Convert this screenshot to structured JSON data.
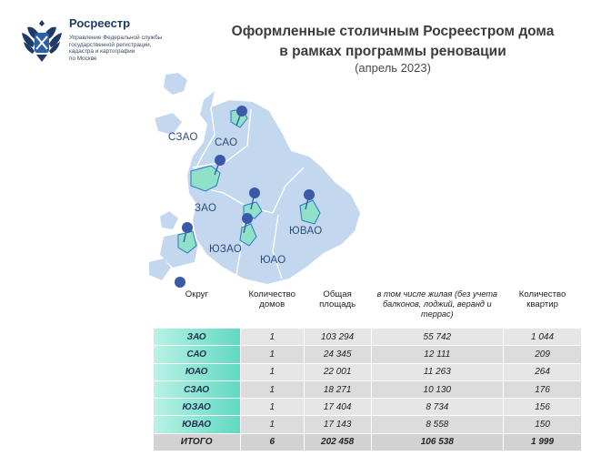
{
  "brand": {
    "name": "Росреестр",
    "subtitle_lines": [
      "Управление Федеральной службы",
      "государственной регистрации,",
      "кадастра и картографии",
      "по Москве"
    ]
  },
  "header": {
    "title_line1": "Оформленные столичным Росреестром дома",
    "title_line2": "в рамках программы реновации",
    "subtitle": "(апрель 2023)"
  },
  "map": {
    "labels": {
      "szao": "СЗАО",
      "sao": "САО",
      "zao": "ЗАО",
      "yuzao": "ЮЗАО",
      "yuao": "ЮАО",
      "yuvao": "ЮВАО"
    },
    "colors": {
      "base": "#c3d8ef",
      "highlight": "#2f75c4",
      "pin": "#3a5aa8",
      "green": "#8fe1c8"
    }
  },
  "table": {
    "headers": {
      "district": "Округ",
      "houses": "Количество домов",
      "area": "Общая площадь",
      "living": "в том числе жилая (без учета балконов, лоджий, веранд и террас)",
      "flats": "Количество квартир"
    },
    "rows": [
      {
        "district": "ЗАО",
        "houses": "1",
        "area": "103 294",
        "living": "55 742",
        "flats": "1 044"
      },
      {
        "district": "САО",
        "houses": "1",
        "area": "24 345",
        "living": "12 111",
        "flats": "209"
      },
      {
        "district": "ЮАО",
        "houses": "1",
        "area": "22 001",
        "living": "11 263",
        "flats": "264"
      },
      {
        "district": "СЗАО",
        "houses": "1",
        "area": "18 271",
        "living": "10 130",
        "flats": "176"
      },
      {
        "district": "ЮЗАО",
        "houses": "1",
        "area": "17 404",
        "living": "8 734",
        "flats": "156"
      },
      {
        "district": "ЮВАО",
        "houses": "1",
        "area": "17 143",
        "living": "8 558",
        "flats": "150"
      }
    ],
    "total": {
      "district": "ИТОГО",
      "houses": "6",
      "area": "202 458",
      "living": "106 538",
      "flats": "1 999"
    }
  }
}
